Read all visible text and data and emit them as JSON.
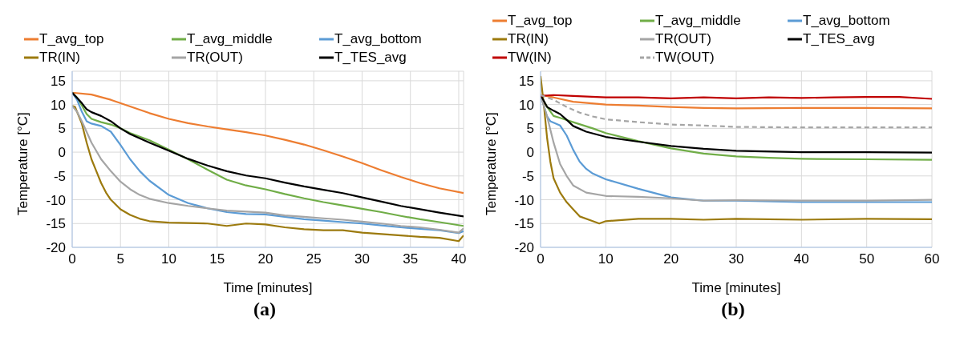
{
  "chart_data": [
    {
      "type": "line",
      "xlabel": "Time [minutes]",
      "ylabel": "Temperature [°C]",
      "annotations": [
        "(a)"
      ],
      "xlim": [
        0,
        40.5
      ],
      "xticks": [
        0,
        5,
        10,
        15,
        20,
        25,
        30,
        35,
        40
      ],
      "ylim": [
        -20,
        17
      ],
      "yticks": [
        -20,
        -15,
        -10,
        -5,
        0,
        5,
        10,
        15
      ],
      "grid": true,
      "legend": "top",
      "marker": "none",
      "series": [
        {
          "name": "T_avg_top",
          "color": "#ed7d31",
          "x": [
            0,
            2,
            4,
            6,
            8,
            10,
            12,
            14,
            16,
            18,
            20,
            22,
            24,
            26,
            28,
            30,
            32,
            34,
            36,
            38,
            40.5
          ],
          "values": [
            12.5,
            12.1,
            11,
            9.6,
            8.2,
            7,
            6.1,
            5.4,
            4.8,
            4.2,
            3.5,
            2.6,
            1.6,
            0.4,
            -0.9,
            -2.3,
            -3.8,
            -5.2,
            -6.5,
            -7.6,
            -8.6
          ]
        },
        {
          "name": "T_avg_middle",
          "color": "#70ad47",
          "x": [
            0,
            0.5,
            1,
            1.5,
            2,
            3,
            4,
            5,
            6,
            8,
            10,
            12,
            14,
            16,
            18,
            20,
            22,
            24,
            26,
            28,
            30,
            32,
            34,
            36,
            38,
            40.5
          ],
          "values": [
            12.5,
            11.5,
            9.8,
            8,
            7,
            6.3,
            5.8,
            5,
            4,
            2.5,
            0.5,
            -1.5,
            -3.7,
            -5.8,
            -7,
            -7.8,
            -8.8,
            -9.7,
            -10.5,
            -11.2,
            -11.9,
            -12.6,
            -13.4,
            -14.1,
            -14.7,
            -15.5
          ]
        },
        {
          "name": "T_avg_bottom",
          "color": "#5b9bd5",
          "x": [
            0,
            0.5,
            1,
            1.5,
            2,
            3,
            4,
            5,
            6,
            7,
            8,
            10,
            12,
            14,
            16,
            18,
            20,
            22,
            24,
            26,
            28,
            30,
            32,
            34,
            36,
            38,
            40,
            40.5
          ],
          "values": [
            12.5,
            11,
            8.5,
            6.5,
            6,
            5.5,
            4.3,
            1.5,
            -1.5,
            -4,
            -6,
            -9,
            -10.7,
            -11.8,
            -12.6,
            -13,
            -13.1,
            -13.6,
            -14.1,
            -14.4,
            -14.7,
            -15,
            -15.4,
            -15.8,
            -16.1,
            -16.4,
            -17,
            -16.6
          ]
        },
        {
          "name": "TR(IN)",
          "color": "#9c7a0e",
          "x": [
            0,
            0.3,
            1,
            1.5,
            2,
            2.5,
            3,
            3.5,
            4,
            5,
            6,
            7,
            8,
            10,
            12,
            14,
            16,
            18,
            20,
            22,
            24,
            26,
            28,
            30,
            32,
            34,
            36,
            38,
            40,
            40.5
          ],
          "values": [
            9.7,
            9.5,
            6,
            2,
            -1.5,
            -4,
            -6.5,
            -8.5,
            -10,
            -12,
            -13.2,
            -14,
            -14.5,
            -14.8,
            -14.9,
            -15,
            -15.5,
            -15,
            -15.2,
            -15.8,
            -16.2,
            -16.4,
            -16.4,
            -16.9,
            -17.2,
            -17.5,
            -17.8,
            -18,
            -18.7,
            -17.5
          ]
        },
        {
          "name": "TR(OUT)",
          "color": "#a5a5a5",
          "x": [
            0,
            0.5,
            1,
            2,
            3,
            4,
            5,
            6,
            7,
            8,
            10,
            12,
            14,
            16,
            18,
            20,
            22,
            24,
            26,
            28,
            30,
            32,
            34,
            36,
            38,
            40,
            40.5
          ],
          "values": [
            9.7,
            8.5,
            6.5,
            2,
            -1.5,
            -4,
            -6.2,
            -7.8,
            -9,
            -9.8,
            -10.7,
            -11.3,
            -11.8,
            -12.3,
            -12.5,
            -12.7,
            -13.3,
            -13.6,
            -13.9,
            -14.2,
            -14.6,
            -15,
            -15.5,
            -15.8,
            -16.3,
            -16.9,
            -16
          ]
        },
        {
          "name": "T_TES_avg",
          "color": "#000000",
          "x": [
            0,
            1,
            1.5,
            2,
            3,
            4,
            5,
            6,
            8,
            10,
            12,
            14,
            16,
            18,
            20,
            22,
            24,
            26,
            28,
            30,
            32,
            34,
            36,
            38,
            40.5
          ],
          "values": [
            12.5,
            10.3,
            9,
            8.4,
            7.6,
            6.5,
            5,
            3.8,
            2,
            0.3,
            -1.4,
            -2.8,
            -4,
            -4.9,
            -5.5,
            -6.4,
            -7.2,
            -7.9,
            -8.6,
            -9.5,
            -10.4,
            -11.3,
            -12,
            -12.7,
            -13.5
          ]
        }
      ]
    },
    {
      "type": "line",
      "xlabel": "Time [minutes]",
      "ylabel": "Temperature [°C]",
      "annotations": [
        "(b)"
      ],
      "xlim": [
        0,
        60
      ],
      "xticks": [
        0,
        10,
        20,
        30,
        40,
        50,
        60
      ],
      "ylim": [
        -20,
        17
      ],
      "yticks": [
        -20,
        -15,
        -10,
        -5,
        0,
        5,
        10,
        15
      ],
      "grid": true,
      "legend": "top",
      "marker": "none",
      "series": [
        {
          "name": "T_avg_top",
          "color": "#ed7d31",
          "x": [
            0,
            2,
            5,
            10,
            15,
            20,
            25,
            30,
            40,
            50,
            60
          ],
          "values": [
            12,
            11.5,
            10.6,
            10,
            9.8,
            9.5,
            9.3,
            9.2,
            9.3,
            9.3,
            9.2
          ]
        },
        {
          "name": "T_avg_middle",
          "color": "#70ad47",
          "x": [
            0,
            1,
            2,
            3,
            5,
            8,
            10,
            15,
            20,
            25,
            30,
            35,
            40,
            50,
            60
          ],
          "values": [
            12,
            9.5,
            7.6,
            7.2,
            6.3,
            5,
            4,
            2.3,
            0.8,
            -0.3,
            -0.9,
            -1.2,
            -1.4,
            -1.5,
            -1.6
          ]
        },
        {
          "name": "T_avg_bottom",
          "color": "#5b9bd5",
          "x": [
            0,
            1,
            1.5,
            3,
            4,
            5,
            6,
            7,
            8,
            10,
            15,
            20,
            25,
            30,
            40,
            50,
            60
          ],
          "values": [
            12,
            7.5,
            6.5,
            5.6,
            3.5,
            0.5,
            -2,
            -3.5,
            -4.5,
            -5.7,
            -7.7,
            -9.5,
            -10.2,
            -10.2,
            -10.5,
            -10.5,
            -10.5
          ]
        },
        {
          "name": "TR(IN)",
          "color": "#9c7a0e",
          "x": [
            0,
            0.5,
            1,
            1.5,
            2,
            3,
            4,
            5,
            6,
            8,
            9,
            10,
            15,
            20,
            25,
            30,
            40,
            50,
            60
          ],
          "values": [
            16,
            10,
            3,
            -2,
            -5.5,
            -8.5,
            -10.5,
            -12,
            -13.5,
            -14.5,
            -15,
            -14.5,
            -14,
            -14,
            -14.2,
            -14,
            -14.2,
            -14,
            -14.1
          ]
        },
        {
          "name": "TR(OUT)",
          "color": "#a5a5a5",
          "x": [
            0,
            1,
            2,
            3,
            4,
            5,
            7,
            10,
            15,
            20,
            25,
            30,
            40,
            50,
            60
          ],
          "values": [
            12,
            7.5,
            2,
            -2.5,
            -5,
            -7,
            -8.5,
            -9.2,
            -9.4,
            -9.7,
            -10.2,
            -10.1,
            -10.2,
            -10.2,
            -10
          ]
        },
        {
          "name": "T_TES_avg",
          "color": "#000000",
          "x": [
            0,
            1,
            2,
            3,
            4,
            5,
            7,
            10,
            15,
            20,
            25,
            30,
            40,
            50,
            60
          ],
          "values": [
            12,
            9.5,
            8.7,
            8,
            6.8,
            5.5,
            4.3,
            3.2,
            2.2,
            1.3,
            0.7,
            0.3,
            0,
            0,
            -0.1
          ]
        },
        {
          "name": "TW(IN)",
          "color": "#c00000",
          "x": [
            0,
            2,
            5,
            10,
            15,
            20,
            25,
            30,
            35,
            40,
            45,
            50,
            55,
            60
          ],
          "values": [
            11.8,
            12,
            11.8,
            11.5,
            11.5,
            11.3,
            11.5,
            11.3,
            11.5,
            11.4,
            11.5,
            11.6,
            11.6,
            11.2
          ]
        },
        {
          "name": "TW(OUT)",
          "color": "#a5a5a5",
          "line_style": "dashed",
          "x": [
            0,
            2,
            4,
            6,
            8,
            10,
            15,
            20,
            25,
            30,
            40,
            50,
            60
          ],
          "values": [
            12,
            11,
            9.5,
            8.3,
            7.5,
            6.9,
            6.3,
            5.8,
            5.6,
            5.3,
            5.2,
            5.2,
            5.2
          ]
        }
      ]
    }
  ]
}
